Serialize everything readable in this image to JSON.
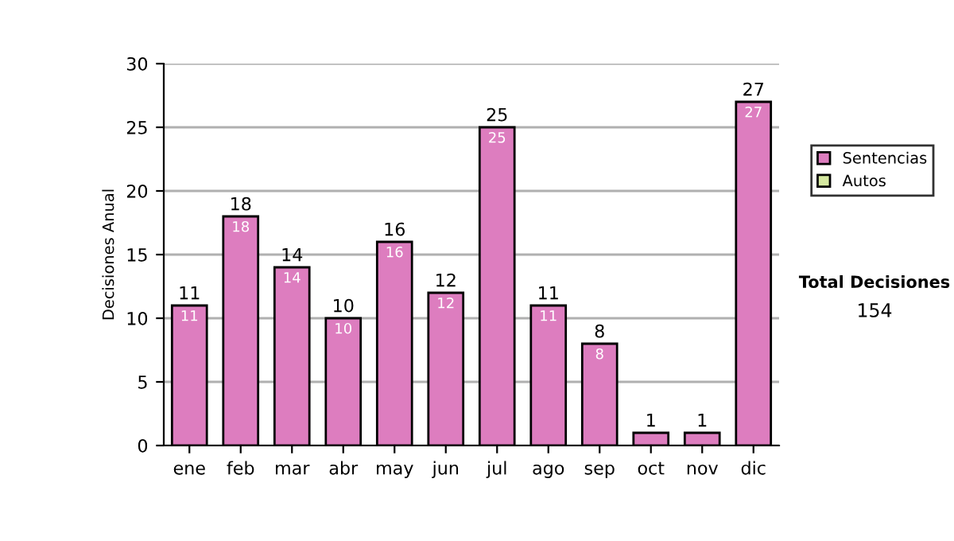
{
  "chart_data": {
    "type": "bar",
    "stacked": true,
    "ylabel": "Decisiones Anual",
    "categories": [
      "ene",
      "feb",
      "mar",
      "abr",
      "may",
      "jun",
      "jul",
      "ago",
      "sep",
      "oct",
      "nov",
      "dic"
    ],
    "series": [
      {
        "name": "Sentencias",
        "color": "#dd7dbf",
        "values": [
          11,
          18,
          14,
          10,
          16,
          12,
          25,
          11,
          8,
          1,
          1,
          27
        ],
        "value_labels": [
          "11",
          "18",
          "14",
          "10",
          "16",
          "12",
          "25",
          "11",
          "8",
          null,
          null,
          "27"
        ]
      },
      {
        "name": "Autos",
        "color": "#d5e8a0",
        "values": [
          null,
          null,
          null,
          null,
          null,
          null,
          null,
          null,
          null,
          null,
          null,
          null
        ]
      }
    ],
    "ylim": [
      0,
      30
    ],
    "yticks": [
      0,
      5,
      10,
      15,
      20,
      25,
      30
    ],
    "grid": "y",
    "legend": "right",
    "totals": [
      "11",
      "18",
      "14",
      "10",
      "16",
      "12",
      "25",
      "11",
      "8",
      "1",
      "1",
      "27"
    ],
    "annotations": [
      "Total Decisiones",
      "154"
    ]
  }
}
